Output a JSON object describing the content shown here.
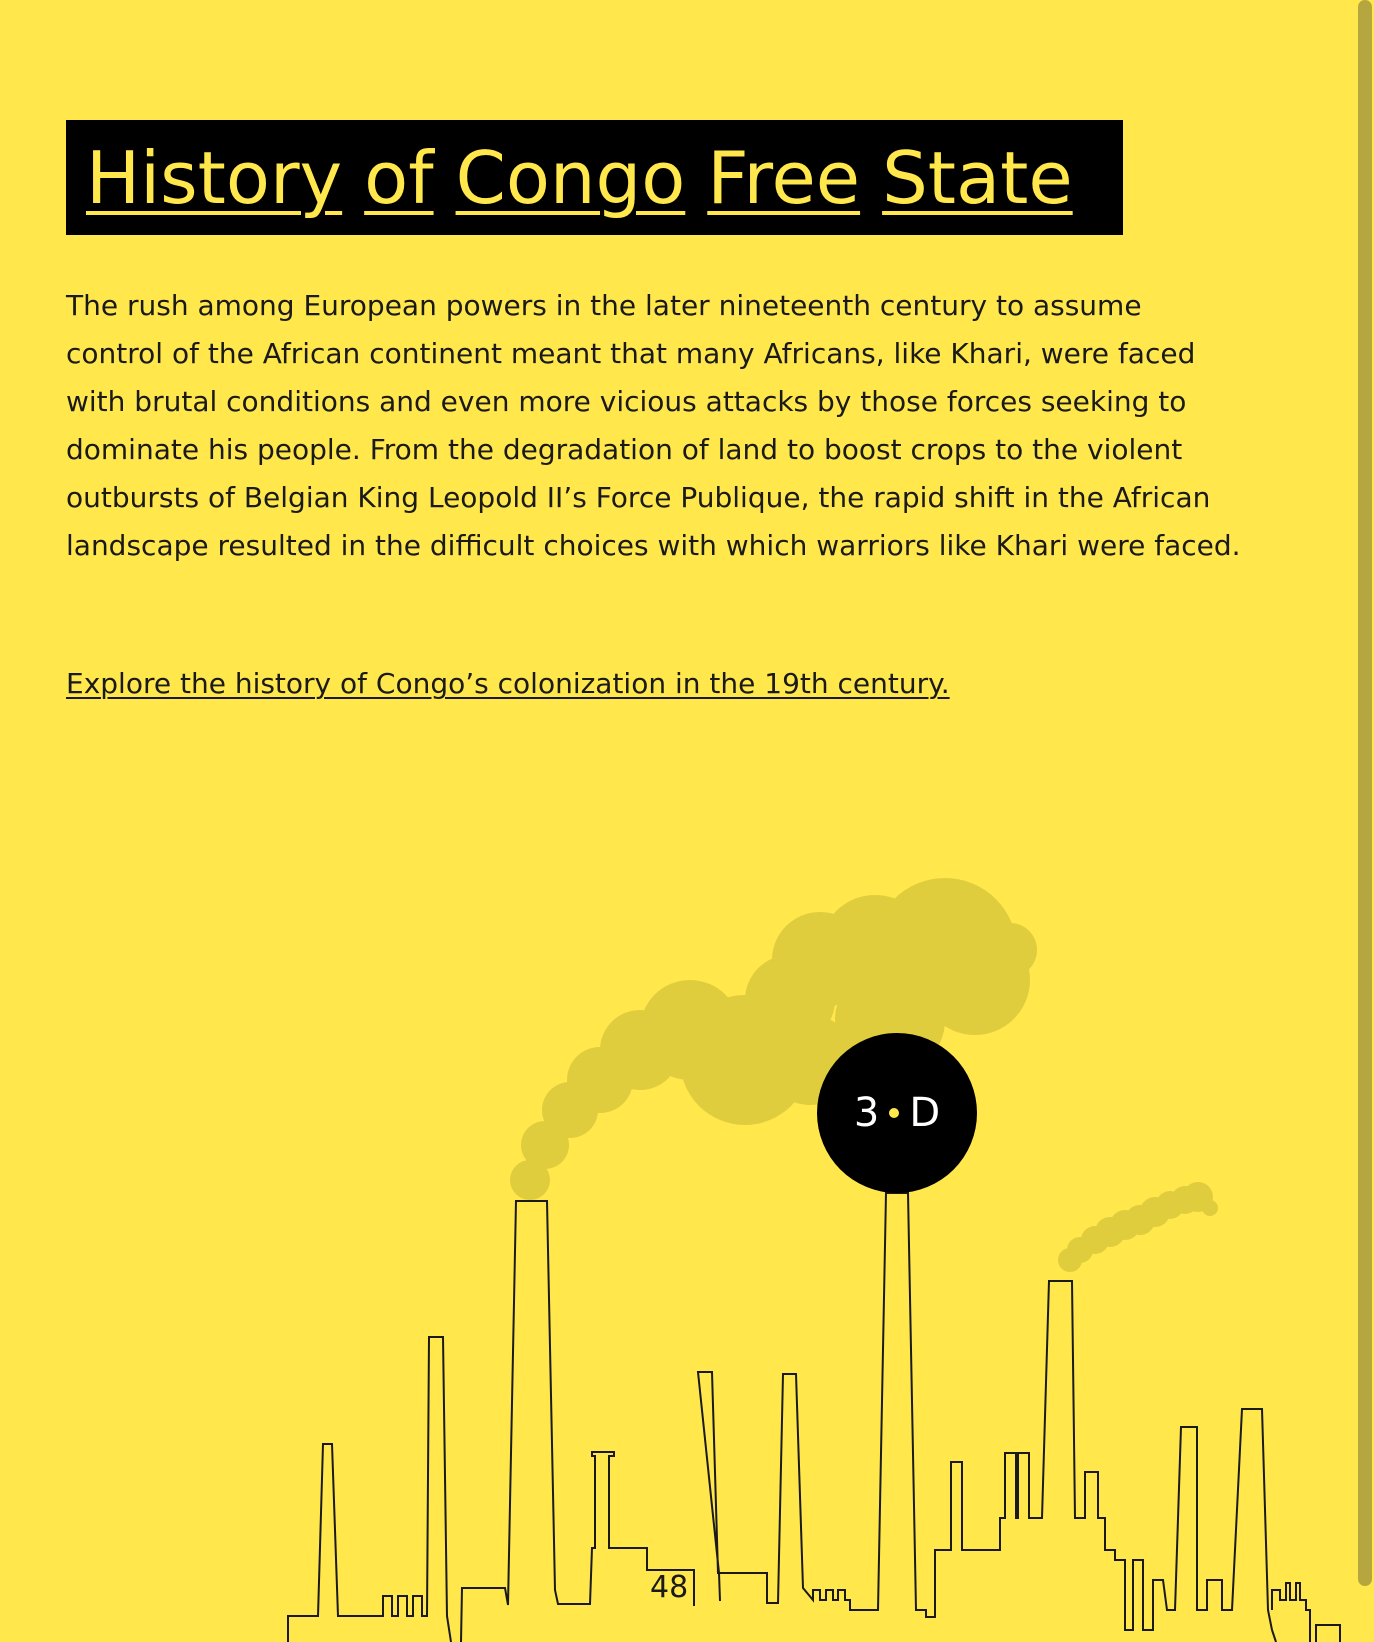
{
  "title": {
    "words": [
      "History",
      "of",
      "Congo",
      "Free",
      "State"
    ]
  },
  "body": {
    "paragraph": "The rush among European powers in the later nineteenth century to assume control of the African continent meant that many Africans, like Khari, were faced with brutal conditions and even more vicious attacks by those forces seeking to dominate his people. From the degradation of land to boost crops to the violent outbursts of Belgian King Leopold II’s Force Publique, the rapid shift in the African landscape resulted in the difficult choices with which warriors like Khari were faced.",
    "link_text": "Explore the history of Congo’s colonization in the 19th century."
  },
  "badge": {
    "left": "3",
    "right": "D"
  },
  "page_number": "48",
  "colors": {
    "background": "#ffe74c",
    "title_bg": "#000000",
    "title_text": "#ffe74c",
    "smoke": "#e0cd3e",
    "line": "#1a1a1a"
  }
}
